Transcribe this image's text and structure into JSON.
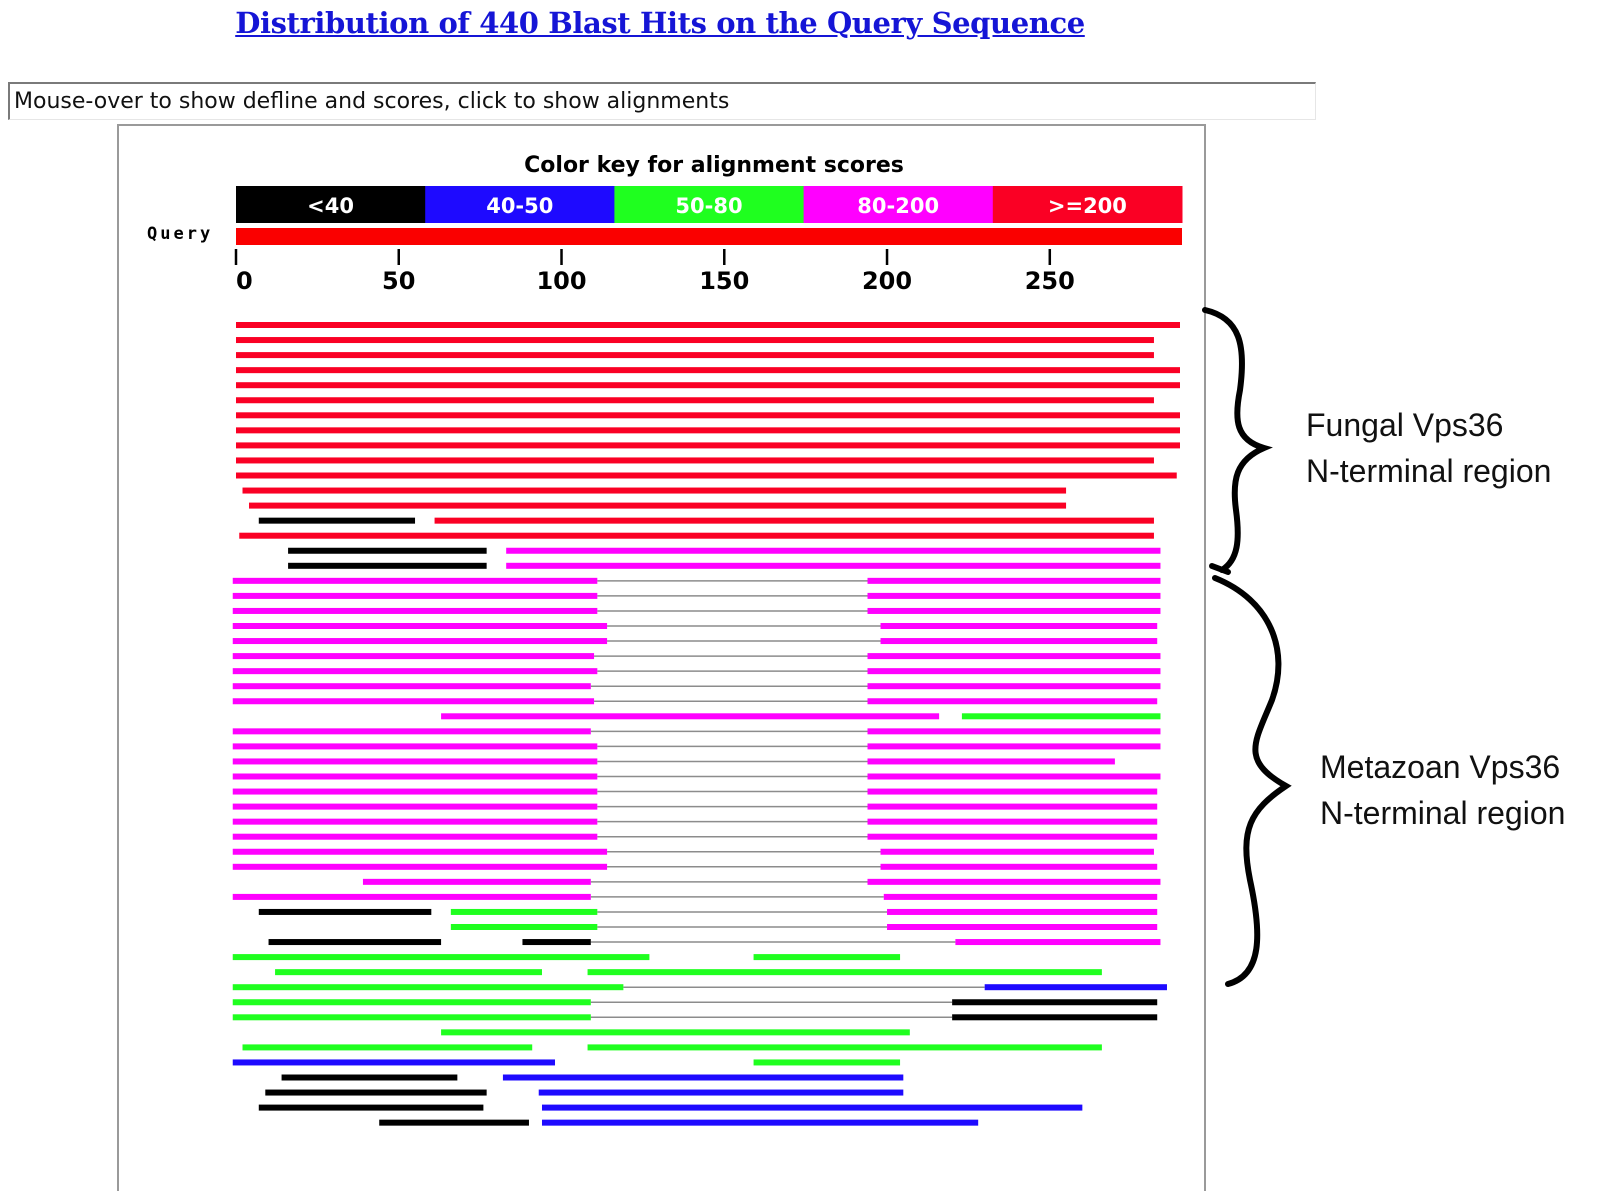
{
  "header": {
    "title": "Distribution of 440 Blast Hits on the Query Sequence",
    "status_text": "Mouse-over to show defline and scores, click to show alignments"
  },
  "chart_data": {
    "type": "alignment-map",
    "title": "Color key for alignment scores",
    "query_label": "Query",
    "query_length": 290,
    "query_color": "#fa0000",
    "xlim": [
      0,
      290
    ],
    "ticks": [
      0,
      50,
      100,
      150,
      200,
      250
    ],
    "tick_labels": [
      "0",
      "50",
      "100",
      "150",
      "200",
      "250"
    ],
    "color_key": [
      {
        "label": "<40",
        "color": "#000000"
      },
      {
        "label": "40-50",
        "color": "#1e0aff"
      },
      {
        "label": "50-80",
        "color": "#1fff1f"
      },
      {
        "label": "80-200",
        "color": "#ff00ff"
      },
      {
        "label": ">=200",
        "color": "#fa0024"
      }
    ],
    "hits": [
      [
        {
          "s": 0,
          "e": 290,
          "c": "red"
        }
      ],
      [
        {
          "s": 0,
          "e": 282,
          "c": "red"
        }
      ],
      [
        {
          "s": 0,
          "e": 282,
          "c": "red"
        }
      ],
      [
        {
          "s": 0,
          "e": 290,
          "c": "red"
        }
      ],
      [
        {
          "s": 0,
          "e": 290,
          "c": "red"
        }
      ],
      [
        {
          "s": 0,
          "e": 282,
          "c": "red"
        }
      ],
      [
        {
          "s": 0,
          "e": 290,
          "c": "red"
        }
      ],
      [
        {
          "s": 0,
          "e": 290,
          "c": "red"
        }
      ],
      [
        {
          "s": 0,
          "e": 290,
          "c": "red"
        }
      ],
      [
        {
          "s": 0,
          "e": 282,
          "c": "red"
        }
      ],
      [
        {
          "s": 0,
          "e": 289,
          "c": "red"
        }
      ],
      [
        {
          "s": 2,
          "e": 255,
          "c": "red"
        }
      ],
      [
        {
          "s": 4,
          "e": 255,
          "c": "red"
        }
      ],
      [
        {
          "s": 7,
          "e": 55,
          "c": "black"
        },
        {
          "s": 61,
          "e": 282,
          "c": "red"
        }
      ],
      [
        {
          "s": 1,
          "e": 282,
          "c": "red"
        }
      ],
      [
        {
          "s": 16,
          "e": 77,
          "c": "black"
        },
        {
          "s": 83,
          "e": 284,
          "c": "magenta"
        }
      ],
      [
        {
          "s": 16,
          "e": 77,
          "c": "black"
        },
        {
          "s": 83,
          "e": 284,
          "c": "magenta"
        }
      ],
      [
        {
          "s": -1,
          "e": 111,
          "c": "magenta",
          "link": true
        },
        {
          "s": 194,
          "e": 284,
          "c": "magenta"
        }
      ],
      [
        {
          "s": -1,
          "e": 111,
          "c": "magenta",
          "link": true
        },
        {
          "s": 194,
          "e": 284,
          "c": "magenta"
        }
      ],
      [
        {
          "s": -1,
          "e": 111,
          "c": "magenta",
          "link": true
        },
        {
          "s": 194,
          "e": 284,
          "c": "magenta"
        }
      ],
      [
        {
          "s": -1,
          "e": 114,
          "c": "magenta",
          "link": true
        },
        {
          "s": 198,
          "e": 283,
          "c": "magenta"
        }
      ],
      [
        {
          "s": -1,
          "e": 114,
          "c": "magenta",
          "link": true
        },
        {
          "s": 198,
          "e": 283,
          "c": "magenta"
        }
      ],
      [
        {
          "s": -1,
          "e": 110,
          "c": "magenta",
          "link": true
        },
        {
          "s": 194,
          "e": 284,
          "c": "magenta"
        }
      ],
      [
        {
          "s": -1,
          "e": 111,
          "c": "magenta",
          "link": true
        },
        {
          "s": 194,
          "e": 284,
          "c": "magenta"
        }
      ],
      [
        {
          "s": -1,
          "e": 109,
          "c": "magenta",
          "link": true
        },
        {
          "s": 194,
          "e": 284,
          "c": "magenta"
        }
      ],
      [
        {
          "s": -1,
          "e": 110,
          "c": "magenta",
          "link": true
        },
        {
          "s": 194,
          "e": 283,
          "c": "magenta"
        }
      ],
      [
        {
          "s": 63,
          "e": 216,
          "c": "magenta"
        },
        {
          "s": 223,
          "e": 284,
          "c": "green"
        }
      ],
      [
        {
          "s": -1,
          "e": 109,
          "c": "magenta",
          "link": true
        },
        {
          "s": 194,
          "e": 284,
          "c": "magenta"
        }
      ],
      [
        {
          "s": -1,
          "e": 111,
          "c": "magenta",
          "link": true
        },
        {
          "s": 194,
          "e": 284,
          "c": "magenta"
        }
      ],
      [
        {
          "s": -1,
          "e": 111,
          "c": "magenta",
          "link": true
        },
        {
          "s": 194,
          "e": 270,
          "c": "magenta"
        }
      ],
      [
        {
          "s": -1,
          "e": 111,
          "c": "magenta",
          "link": true
        },
        {
          "s": 194,
          "e": 284,
          "c": "magenta"
        }
      ],
      [
        {
          "s": -1,
          "e": 111,
          "c": "magenta",
          "link": true
        },
        {
          "s": 194,
          "e": 283,
          "c": "magenta"
        }
      ],
      [
        {
          "s": -1,
          "e": 111,
          "c": "magenta",
          "link": true
        },
        {
          "s": 194,
          "e": 283,
          "c": "magenta"
        }
      ],
      [
        {
          "s": -1,
          "e": 111,
          "c": "magenta",
          "link": true
        },
        {
          "s": 194,
          "e": 283,
          "c": "magenta"
        }
      ],
      [
        {
          "s": -1,
          "e": 111,
          "c": "magenta",
          "link": true
        },
        {
          "s": 194,
          "e": 283,
          "c": "magenta"
        }
      ],
      [
        {
          "s": -1,
          "e": 114,
          "c": "magenta",
          "link": true
        },
        {
          "s": 198,
          "e": 282,
          "c": "magenta"
        }
      ],
      [
        {
          "s": -1,
          "e": 114,
          "c": "magenta",
          "link": true
        },
        {
          "s": 198,
          "e": 283,
          "c": "magenta"
        }
      ],
      [
        {
          "s": 39,
          "e": 109,
          "c": "magenta",
          "link": true
        },
        {
          "s": 194,
          "e": 284,
          "c": "magenta"
        }
      ],
      [
        {
          "s": -1,
          "e": 109,
          "c": "magenta",
          "link": true
        },
        {
          "s": 199,
          "e": 283,
          "c": "magenta"
        }
      ],
      [
        {
          "s": 7,
          "e": 60,
          "c": "black"
        },
        {
          "s": 66,
          "e": 111,
          "c": "green",
          "link": true
        },
        {
          "s": 200,
          "e": 283,
          "c": "magenta"
        }
      ],
      [
        {
          "s": 66,
          "e": 111,
          "c": "green",
          "link": true
        },
        {
          "s": 200,
          "e": 283,
          "c": "magenta"
        }
      ],
      [
        {
          "s": 10,
          "e": 63,
          "c": "black"
        },
        {
          "s": 88,
          "e": 109,
          "c": "black",
          "link": true
        },
        {
          "s": 221,
          "e": 284,
          "c": "magenta"
        }
      ],
      [
        {
          "s": -1,
          "e": 127,
          "c": "green"
        },
        {
          "s": 159,
          "e": 204,
          "c": "green"
        }
      ],
      [
        {
          "s": 12,
          "e": 94,
          "c": "green"
        },
        {
          "s": 108,
          "e": 266,
          "c": "green"
        }
      ],
      [
        {
          "s": -1,
          "e": 119,
          "c": "green",
          "link": true
        },
        {
          "s": 230,
          "e": 286,
          "c": "blue"
        }
      ],
      [
        {
          "s": -1,
          "e": 109,
          "c": "green",
          "link": true
        },
        {
          "s": 220,
          "e": 283,
          "c": "black"
        }
      ],
      [
        {
          "s": -1,
          "e": 109,
          "c": "green",
          "link": true
        },
        {
          "s": 220,
          "e": 283,
          "c": "black"
        }
      ],
      [
        {
          "s": 63,
          "e": 207,
          "c": "green"
        }
      ],
      [
        {
          "s": 2,
          "e": 91,
          "c": "green"
        },
        {
          "s": 108,
          "e": 266,
          "c": "green"
        }
      ],
      [
        {
          "s": -1,
          "e": 98,
          "c": "blue"
        },
        {
          "s": 159,
          "e": 204,
          "c": "green"
        }
      ],
      [
        {
          "s": 14,
          "e": 68,
          "c": "black"
        },
        {
          "s": 82,
          "e": 205,
          "c": "blue"
        }
      ],
      [
        {
          "s": 9,
          "e": 77,
          "c": "black"
        },
        {
          "s": 93,
          "e": 205,
          "c": "blue"
        }
      ],
      [
        {
          "s": 7,
          "e": 76,
          "c": "black"
        },
        {
          "s": 94,
          "e": 260,
          "c": "blue"
        }
      ],
      [
        {
          "s": 44,
          "e": 90,
          "c": "black"
        },
        {
          "s": 94,
          "e": 228,
          "c": "blue"
        }
      ]
    ]
  },
  "annotations": {
    "fungal_line1": "Fungal Vps36",
    "fungal_line2": "N-terminal region",
    "metazoan_line1": "Metazoan Vps36",
    "metazoan_line2": "N-terminal region"
  }
}
